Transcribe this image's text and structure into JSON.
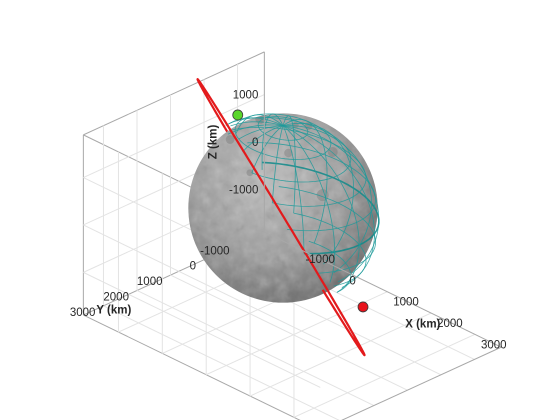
{
  "chart_data": {
    "type": "3d-line",
    "title": "",
    "xlabel": "X (km)",
    "ylabel": "Y (km)",
    "zlabel": "Z (km)",
    "xticks": [
      "-1000",
      "0",
      "1000",
      "2000",
      "3000"
    ],
    "yticks": [
      "-1000",
      "0",
      "1000",
      "2000",
      "3000"
    ],
    "zticks": [
      "-1000",
      "0",
      "1000"
    ],
    "xlim": [
      -1800,
      3600
    ],
    "ylim": [
      -1800,
      3600
    ],
    "zlim": [
      -1900,
      1900
    ],
    "grid": true,
    "body": {
      "radius_km": 1737,
      "texture": "lunar surface",
      "graticule_color": "#1f9a9a",
      "equator_color": "#0f8a8a"
    },
    "orbit": {
      "color": "#e31a1c",
      "center": [
        200,
        320,
        0
      ],
      "radius_km": 2800,
      "inclination_deg": 62,
      "node_deg": 35
    },
    "markers": [
      {
        "role": "start",
        "color": "#5ad62a",
        "position": [
          0,
          1350,
          2400
        ]
      },
      {
        "role": "end",
        "color": "#e8121b",
        "position": [
          1900,
          100,
          -1200
        ]
      }
    ]
  }
}
